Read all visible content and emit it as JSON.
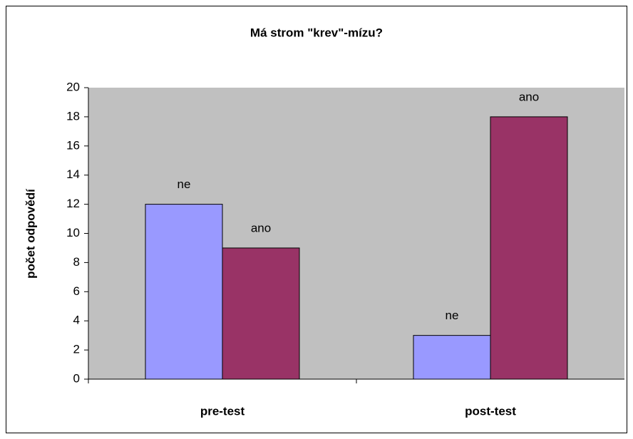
{
  "chart_data": {
    "type": "bar",
    "title": "Má strom \"krev\"-mízu?",
    "ylabel": "počet odpovědí",
    "categories": [
      "pre-test",
      "post-test"
    ],
    "series": [
      {
        "name": "ne",
        "color": "#9999ff",
        "values": [
          12,
          3
        ]
      },
      {
        "name": "ano",
        "color": "#993366",
        "values": [
          9,
          18
        ]
      }
    ],
    "ylim": [
      0,
      20
    ],
    "yticks": [
      0,
      2,
      4,
      6,
      8,
      10,
      12,
      14,
      16,
      18,
      20
    ],
    "grid": false
  }
}
